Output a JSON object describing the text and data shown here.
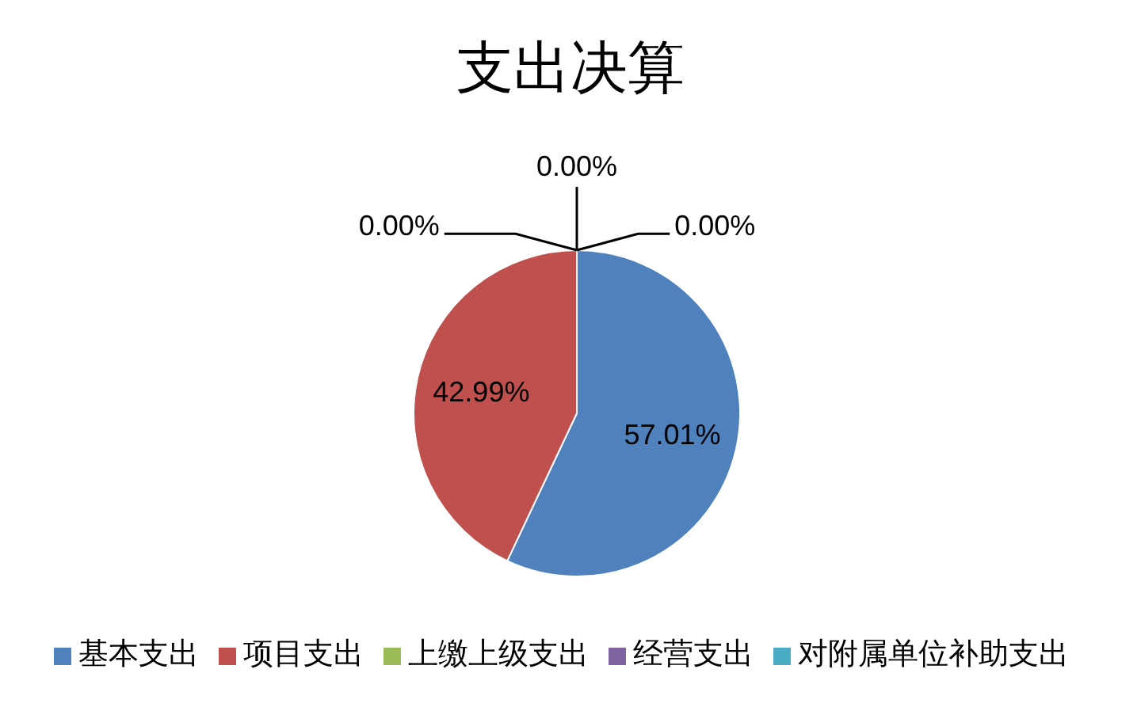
{
  "chart_data": {
    "type": "pie",
    "title": "支出决算",
    "categories": [
      "基本支出",
      "项目支出",
      "上缴上级支出",
      "经营支出",
      "对附属单位补助支出"
    ],
    "values": [
      57.01,
      42.99,
      0,
      0,
      0
    ],
    "colors": [
      "#4f81bd",
      "#c0504d",
      "#9bbb59",
      "#8064a2",
      "#4bacc6"
    ],
    "value_labels": [
      "57.01%",
      "42.99%",
      "0.00%",
      "0.00%",
      "0.00%"
    ],
    "legend": "bottom"
  }
}
